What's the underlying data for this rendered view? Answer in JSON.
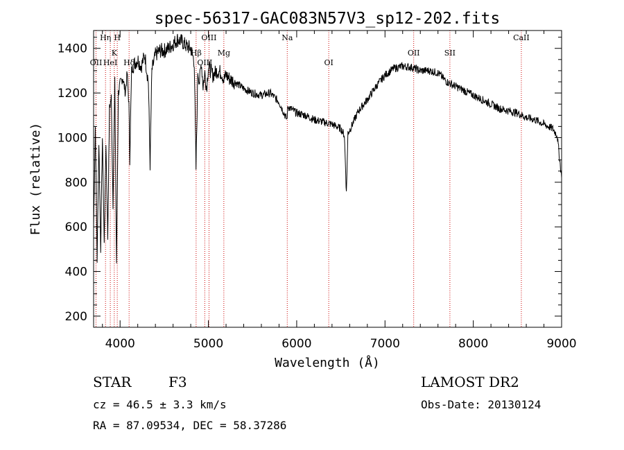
{
  "chart_data": {
    "type": "line",
    "title": "spec-56317-GAC083N57V3_sp12-202.fits",
    "xlabel": "Wavelength (Å)",
    "ylabel": "Flux (relative)",
    "xlim": [
      3700,
      9000
    ],
    "ylim": [
      150,
      1480
    ],
    "x_ticks": [
      4000,
      5000,
      6000,
      7000,
      8000,
      9000
    ],
    "y_ticks": [
      200,
      400,
      600,
      800,
      1000,
      1200,
      1400
    ],
    "grid": false,
    "line_markers": [
      {
        "label": "Hη",
        "x": 3835
      },
      {
        "label": "H",
        "x": 3968
      },
      {
        "label": "K",
        "x": 3934
      },
      {
        "label": "OII",
        "x": 3727
      },
      {
        "label": "HeI",
        "x": 3889
      },
      {
        "label": "Hδ",
        "x": 4102
      },
      {
        "label": "OIII",
        "x": 5007
      },
      {
        "label": "Hβ",
        "x": 4861
      },
      {
        "label": "OIII",
        "x": 4959
      },
      {
        "label": "Mg",
        "x": 5175
      },
      {
        "label": "Na",
        "x": 5893
      },
      {
        "label": "OI",
        "x": 6363
      },
      {
        "label": "OII",
        "x": 7325
      },
      {
        "label": "SII",
        "x": 7735
      },
      {
        "label": "CaII",
        "x": 8544
      }
    ],
    "series": [
      {
        "x": [
          3700,
          3720,
          3740,
          3760,
          3780,
          3800,
          3820,
          3840,
          3860,
          3880,
          3900,
          3920,
          3940,
          3960,
          3980,
          4000,
          4030,
          4060,
          4080,
          4100,
          4110,
          4130,
          4160,
          4200,
          4240,
          4280,
          4320,
          4340,
          4360,
          4400,
          4450,
          4500,
          4550,
          4600,
          4650,
          4700,
          4750,
          4800,
          4840,
          4860,
          4880,
          4900,
          4920,
          4940,
          4960,
          4980,
          5000,
          5050,
          5100,
          5150,
          5175,
          5200,
          5250,
          5300,
          5400,
          5500,
          5600,
          5700,
          5800,
          5890,
          5900,
          6000,
          6100,
          6200,
          6300,
          6400,
          6450,
          6500,
          6540,
          6563,
          6580,
          6620,
          6700,
          6800,
          6900,
          7000,
          7100,
          7200,
          7300,
          7400,
          7500,
          7600,
          7700,
          7800,
          7900,
          8000,
          8100,
          8200,
          8300,
          8400,
          8500,
          8600,
          8700,
          8800,
          8900,
          8950,
          9000
        ],
        "y": [
          600,
          1050,
          450,
          980,
          500,
          1000,
          520,
          980,
          550,
          1130,
          1180,
          700,
          1250,
          420,
          1200,
          1240,
          1270,
          1200,
          1290,
          1150,
          900,
          1300,
          1330,
          1350,
          1320,
          1370,
          1250,
          880,
          1300,
          1370,
          1390,
          1390,
          1400,
          1420,
          1440,
          1430,
          1410,
          1400,
          1340,
          860,
          1300,
          1250,
          1340,
          1230,
          1290,
          1220,
          1320,
          1280,
          1300,
          1290,
          1260,
          1280,
          1260,
          1250,
          1220,
          1200,
          1190,
          1200,
          1160,
          1080,
          1140,
          1110,
          1100,
          1080,
          1070,
          1060,
          1050,
          1040,
          1010,
          750,
          1020,
          1050,
          1120,
          1170,
          1230,
          1280,
          1310,
          1320,
          1315,
          1300,
          1300,
          1290,
          1250,
          1230,
          1210,
          1190,
          1170,
          1150,
          1130,
          1120,
          1110,
          1090,
          1080,
          1060,
          1040,
          1010,
          820
        ]
      }
    ]
  },
  "info": {
    "object_type": "STAR",
    "subclass": "F3",
    "survey": "LAMOST DR2",
    "cz": "cz = 46.5 ± 3.3 km/s",
    "obs_date": "Obs-Date: 20130124",
    "coords": "RA =  87.09534, DEC =  58.37286"
  },
  "colors": {
    "spectrum": "#000000",
    "marker_line": "#cc0000"
  }
}
